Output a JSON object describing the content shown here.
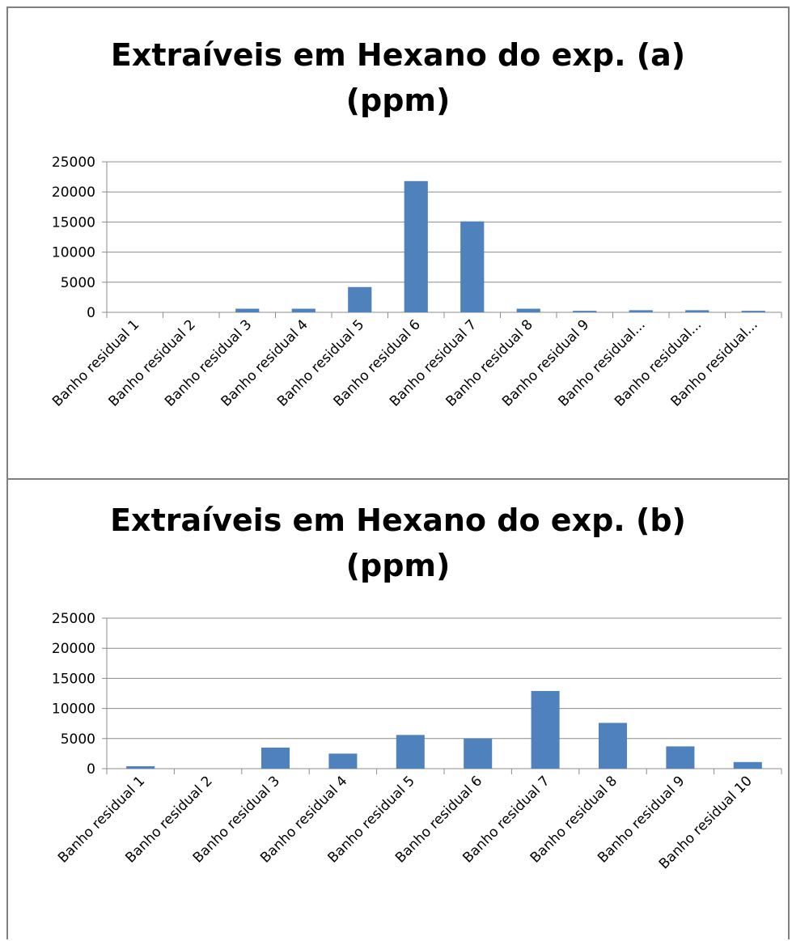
{
  "chart_data": [
    {
      "type": "bar",
      "title_line1": "Extraíveis em Hexano do exp. (a)",
      "title_line2": "(ppm)",
      "categories": [
        "Banho residual  1",
        "Banho residual 2",
        "Banho residual 3",
        "Banho residual 4",
        "Banho residual 5",
        "Banho residual 6",
        "Banho residual 7",
        "Banho residual 8",
        "Banho residual 9",
        "Banho residual...",
        "Banho residual...",
        "Banho residual..."
      ],
      "values": [
        0,
        0,
        600,
        600,
        4200,
        21800,
        15100,
        600,
        250,
        350,
        350,
        250
      ],
      "ylim": [
        0,
        25000
      ],
      "yticks": [
        0,
        5000,
        10000,
        15000,
        20000,
        25000
      ],
      "grid": true,
      "legend": "none",
      "bar_color": "#4f81bd"
    },
    {
      "type": "bar",
      "title_line1": "Extraíveis em Hexano do exp. (b)",
      "title_line2": "(ppm)",
      "categories": [
        "Banho residual  1",
        "Banho residual 2",
        "Banho residual 3",
        "Banho residual 4",
        "Banho residual 5",
        "Banho residual 6",
        "Banho residual 7",
        "Banho residual 8",
        "Banho residual 9",
        "Banho residual 10"
      ],
      "values": [
        400,
        0,
        3500,
        2500,
        5600,
        5000,
        12900,
        7600,
        3700,
        1100
      ],
      "ylim": [
        0,
        25000
      ],
      "yticks": [
        0,
        5000,
        10000,
        15000,
        20000,
        25000
      ],
      "grid": true,
      "legend": "none",
      "bar_color": "#4f81bd"
    }
  ]
}
